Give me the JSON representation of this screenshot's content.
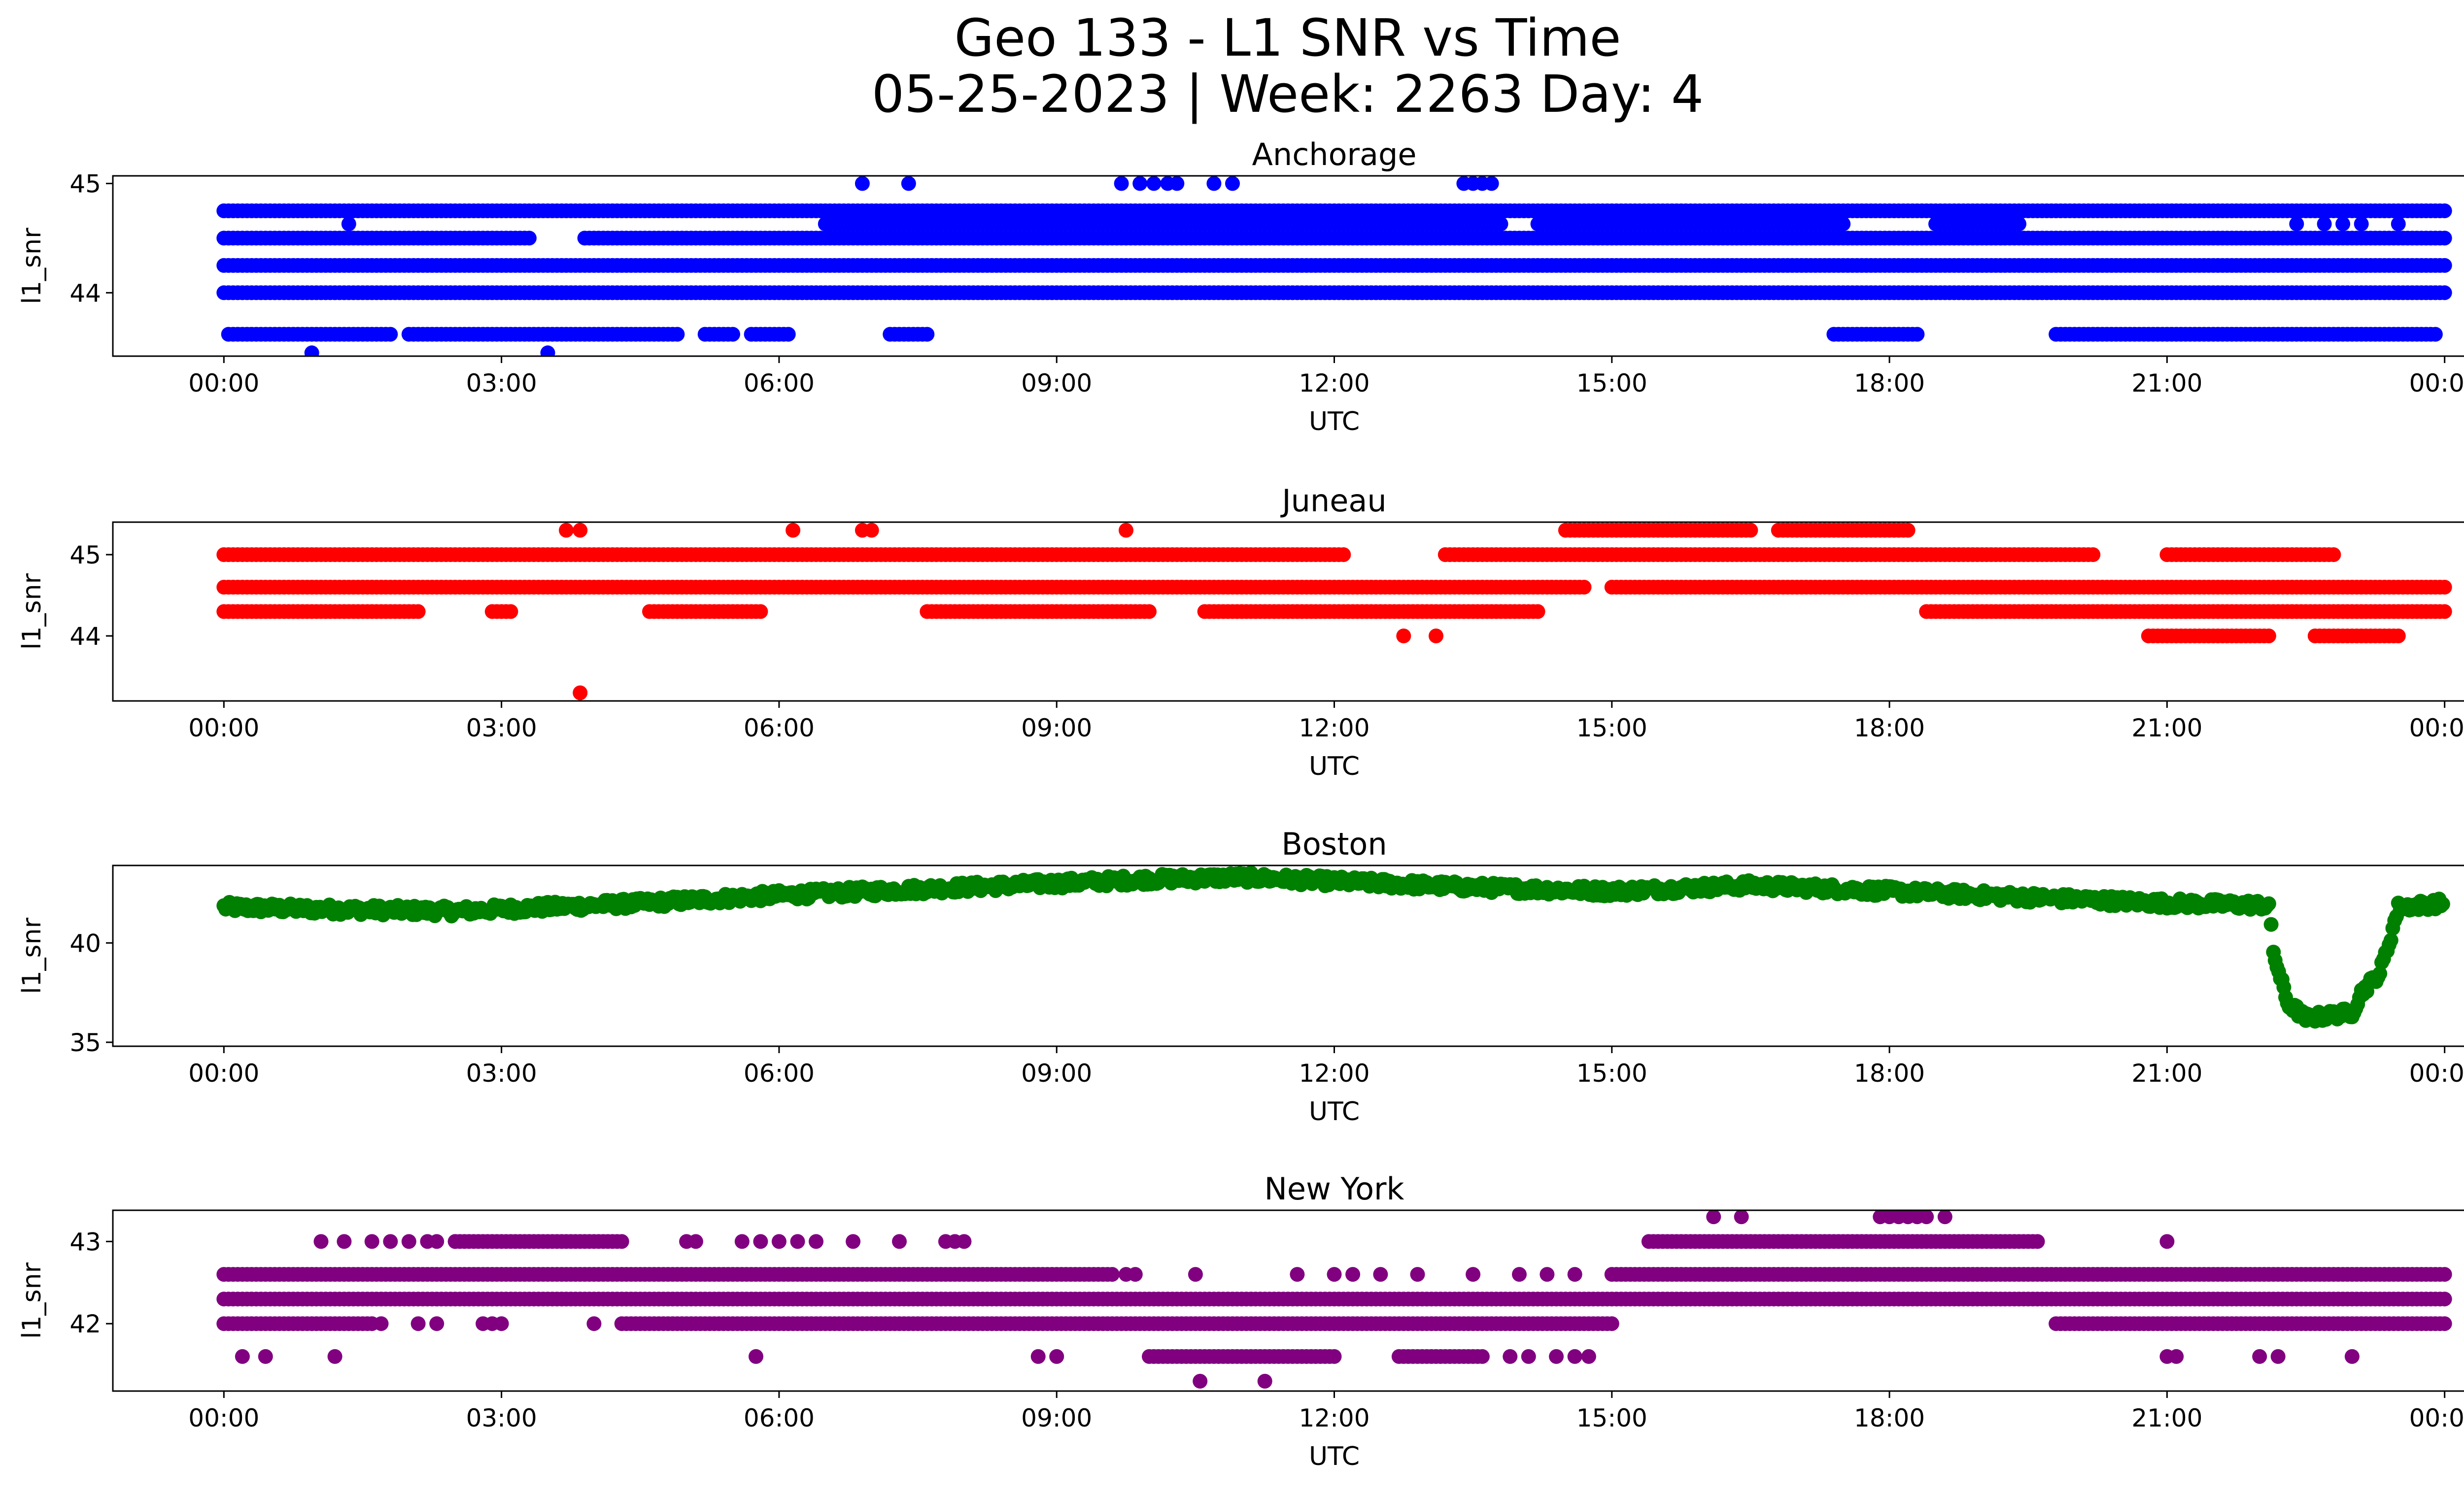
{
  "figure": {
    "title_line1": "Geo 133 - L1 SNR vs Time",
    "title_line2": "05-25-2023 | Week: 2263 Day: 4"
  },
  "chart_data": [
    {
      "type": "scatter",
      "title": "Anchorage",
      "xlabel": "UTC",
      "ylabel": "l1_snr",
      "color": "#0000ff",
      "x_ticks": [
        "00:00",
        "03:00",
        "06:00",
        "09:00",
        "12:00",
        "15:00",
        "18:00",
        "21:00",
        "00:00"
      ],
      "x_range_hours": [
        -1.2,
        25.2
      ],
      "y_ticks": [
        44,
        45
      ],
      "ylim": [
        43.42,
        45.07
      ],
      "series": [
        {
          "y": 44.75,
          "coverage": [
            [
              0.0,
              24.0
            ]
          ]
        },
        {
          "y": 44.5,
          "coverage": [
            [
              0.0,
              3.3
            ],
            [
              3.9,
              24.0
            ]
          ]
        },
        {
          "y": 44.0,
          "coverage": [
            [
              0.0,
              24.0
            ]
          ]
        },
        {
          "y": 44.25,
          "coverage": [
            [
              0.0,
              24.0
            ]
          ]
        },
        {
          "y": 43.62,
          "coverage": [
            [
              0.05,
              1.8
            ],
            [
              2.0,
              4.9
            ],
            [
              5.2,
              5.5
            ],
            [
              5.7,
              6.1
            ],
            [
              7.2,
              7.6
            ],
            [
              17.4,
              18.3
            ],
            [
              19.8,
              23.9
            ]
          ]
        },
        {
          "y": 44.63,
          "coverage": [
            [
              6.5,
              13.8
            ],
            [
              14.2,
              17.5
            ],
            [
              18.5,
              19.4
            ]
          ]
        },
        {
          "y": 44.63,
          "points": [
            1.35,
            22.4,
            22.7,
            22.9,
            23.1,
            23.5
          ]
        },
        {
          "y": 45.0,
          "points": [
            6.9,
            7.4,
            9.7,
            9.9,
            10.05,
            10.2,
            10.3,
            10.7,
            10.9,
            13.4,
            13.5,
            13.6,
            13.7
          ]
        },
        {
          "y": 43.45,
          "points": [
            0.95,
            3.5
          ]
        }
      ]
    },
    {
      "type": "scatter",
      "title": "Juneau",
      "xlabel": "UTC",
      "ylabel": "l1_snr",
      "color": "#ff0000",
      "x_ticks": [
        "00:00",
        "03:00",
        "06:00",
        "09:00",
        "12:00",
        "15:00",
        "18:00",
        "21:00",
        "00:00"
      ],
      "x_range_hours": [
        -1.2,
        25.2
      ],
      "y_ticks": [
        44,
        45
      ],
      "ylim": [
        43.2,
        45.4
      ],
      "series": [
        {
          "y": 44.6,
          "coverage": [
            [
              0.0,
              14.7
            ],
            [
              15.0,
              24.0
            ]
          ]
        },
        {
          "y": 45.0,
          "coverage": [
            [
              0.0,
              12.1
            ],
            [
              13.2,
              20.2
            ],
            [
              21.0,
              22.8
            ]
          ]
        },
        {
          "y": 44.3,
          "coverage": [
            [
              0.0,
              2.1
            ],
            [
              2.9,
              3.1
            ],
            [
              4.6,
              5.8
            ],
            [
              7.6,
              10.0
            ],
            [
              10.6,
              14.2
            ],
            [
              18.4,
              24.0
            ]
          ]
        },
        {
          "y": 45.3,
          "coverage": [
            [
              14.5,
              16.5
            ],
            [
              16.8,
              18.2
            ]
          ]
        },
        {
          "y": 45.3,
          "points": [
            3.7,
            3.85,
            6.15,
            6.9,
            7.0,
            9.75
          ]
        },
        {
          "y": 44.0,
          "coverage": [
            [
              20.8,
              22.1
            ],
            [
              22.6,
              23.5
            ]
          ]
        },
        {
          "y": 44.0,
          "points": [
            12.75,
            13.1
          ]
        },
        {
          "y": 43.3,
          "points": [
            3.85
          ]
        }
      ]
    },
    {
      "type": "scatter",
      "title": "Boston",
      "xlabel": "UTC",
      "ylabel": "l1_snr",
      "color": "#008000",
      "x_ticks": [
        "00:00",
        "03:00",
        "06:00",
        "09:00",
        "12:00",
        "15:00",
        "18:00",
        "21:00",
        "00:00"
      ],
      "x_range_hours": [
        -1.2,
        25.2
      ],
      "y_ticks": [
        35,
        40
      ],
      "ylim": [
        34.8,
        43.9
      ],
      "series": [
        {
          "name_hidden": true,
          "trend": [
            [
              0.0,
              41.8
            ],
            [
              1.0,
              41.7
            ],
            [
              2.5,
              41.6
            ],
            [
              3.5,
              41.8
            ],
            [
              4.5,
              42.0
            ],
            [
              6.0,
              42.4
            ],
            [
              7.5,
              42.7
            ],
            [
              9.0,
              43.0
            ],
            [
              10.0,
              43.2
            ],
            [
              11.0,
              43.3
            ],
            [
              12.0,
              43.1
            ],
            [
              13.5,
              42.8
            ],
            [
              15.0,
              42.6
            ],
            [
              16.5,
              42.9
            ],
            [
              18.0,
              42.6
            ],
            [
              19.5,
              42.3
            ],
            [
              21.0,
              42.0
            ],
            [
              22.1,
              41.9
            ],
            [
              22.15,
              39.5
            ],
            [
              22.3,
              37.0
            ],
            [
              22.5,
              36.2
            ],
            [
              23.0,
              36.5
            ],
            [
              23.1,
              37.5
            ],
            [
              23.3,
              38.5
            ],
            [
              23.4,
              40.0
            ],
            [
              23.5,
              41.8
            ],
            [
              24.0,
              42.0
            ]
          ]
        }
      ]
    },
    {
      "type": "scatter",
      "title": "New York",
      "xlabel": "UTC",
      "ylabel": "l1_snr",
      "color": "#800080",
      "x_ticks": [
        "00:00",
        "03:00",
        "06:00",
        "09:00",
        "12:00",
        "15:00",
        "18:00",
        "21:00",
        "00:00"
      ],
      "x_range_hours": [
        -1.2,
        25.2
      ],
      "y_ticks": [
        42,
        43
      ],
      "ylim": [
        41.18,
        43.38
      ],
      "series": [
        {
          "y": 42.3,
          "coverage": [
            [
              0.0,
              24.0
            ]
          ]
        },
        {
          "y": 42.6,
          "coverage": [
            [
              0.0,
              9.6
            ],
            [
              15.0,
              24.0
            ]
          ]
        },
        {
          "y": 42.6,
          "points": [
            9.75,
            9.85,
            10.5,
            11.6,
            12.0,
            12.2,
            12.5,
            12.9,
            13.5,
            14.0,
            14.3,
            14.6
          ]
        },
        {
          "y": 42.0,
          "coverage": [
            [
              0.0,
              1.6
            ],
            [
              4.3,
              15.0
            ],
            [
              19.8,
              24.0
            ]
          ]
        },
        {
          "y": 42.0,
          "points": [
            1.7,
            2.1,
            2.3,
            2.8,
            2.9,
            3.0,
            4.0
          ]
        },
        {
          "y": 43.0,
          "coverage": [
            [
              2.5,
              4.3
            ],
            [
              15.4,
              19.6
            ]
          ]
        },
        {
          "y": 43.0,
          "points": [
            1.05,
            1.3,
            1.6,
            1.8,
            2.0,
            2.2,
            2.3,
            2.5,
            5.0,
            5.1,
            5.6,
            5.8,
            6.0,
            6.2,
            6.4,
            6.8,
            7.3,
            7.8,
            7.9,
            8.0,
            21.0
          ]
        },
        {
          "y": 41.6,
          "coverage": [
            [
              10.0,
              12.0
            ],
            [
              12.7,
              13.6
            ]
          ]
        },
        {
          "y": 41.6,
          "points": [
            0.2,
            0.45,
            1.2,
            5.75,
            8.8,
            9.0,
            13.9,
            14.1,
            14.4,
            14.6,
            14.75,
            21.0,
            21.1,
            22.0,
            22.2,
            23.0
          ]
        },
        {
          "y": 43.3,
          "points": [
            16.1,
            16.4,
            17.9,
            18.0,
            18.1,
            18.2,
            18.3,
            18.4,
            18.6
          ]
        },
        {
          "y": 41.3,
          "points": [
            10.55,
            11.25
          ]
        }
      ]
    }
  ]
}
